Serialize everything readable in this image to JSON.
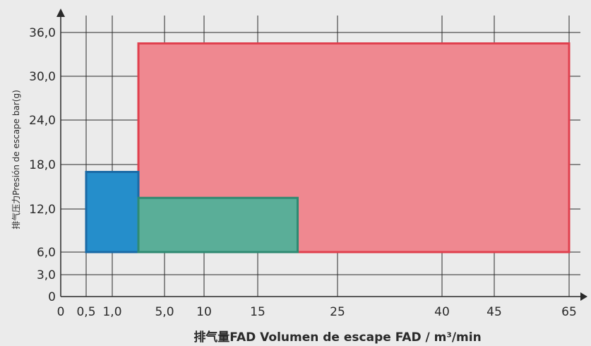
{
  "chart_data": {
    "type": "area",
    "title": "",
    "xlabel": "排气量FAD Volumen de escape FAD / m³/min",
    "ylabel": "排气压力Presión de escape bar(g)",
    "x_ticks": [
      {
        "label": "0",
        "value": 0
      },
      {
        "label": "0,5",
        "value": 0.5
      },
      {
        "label": "1,0",
        "value": 1.0
      },
      {
        "label": "5,0",
        "value": 5
      },
      {
        "label": "10",
        "value": 10
      },
      {
        "label": "15",
        "value": 15
      },
      {
        "label": "25",
        "value": 25
      },
      {
        "label": "40",
        "value": 40
      },
      {
        "label": "45",
        "value": 45
      },
      {
        "label": "65",
        "value": 65
      }
    ],
    "y_ticks": [
      {
        "label": "0",
        "value": 0
      },
      {
        "label": "3,0",
        "value": 3
      },
      {
        "label": "6,0",
        "value": 6
      },
      {
        "label": "12,0",
        "value": 12
      },
      {
        "label": "18,0",
        "value": 18
      },
      {
        "label": "24,0",
        "value": 24
      },
      {
        "label": "30,0",
        "value": 30
      },
      {
        "label": "36,0",
        "value": 36
      }
    ],
    "ranges": [
      {
        "fill": "#ef8890",
        "stroke": "#e0404e",
        "x": [
          3,
          65
        ],
        "y": [
          6,
          34.5
        ]
      },
      {
        "fill": "#258ecb",
        "stroke": "#1a6aa6",
        "x": [
          0.5,
          3
        ],
        "y": [
          6,
          17
        ]
      },
      {
        "fill": "#5aae98",
        "stroke": "#2f8a72",
        "x": [
          3,
          20
        ],
        "y": [
          6,
          13.5
        ]
      }
    ],
    "grid": true,
    "colors": {
      "background": "#ebebeb",
      "axis": "#2a2a2a",
      "grid": "#2a2a2a"
    }
  }
}
